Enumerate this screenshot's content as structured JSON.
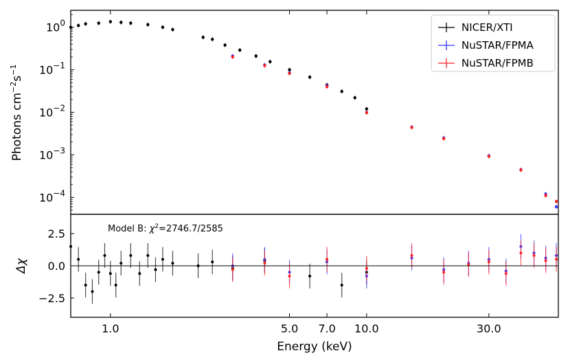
{
  "chart_data": [
    {
      "type": "scatter",
      "panel": "spectrum",
      "ylabel_main": "Photons cm",
      "ylabel_exp1": "−2",
      "ylabel_mid": "s",
      "ylabel_exp2": "−1",
      "xscale": "log",
      "yscale": "log",
      "xlim": [
        0.7,
        56
      ],
      "ylim": [
        4e-05,
        2.5
      ],
      "yticks": [
        {
          "value": 1,
          "base": "10",
          "exp": "0"
        },
        {
          "value": 0.1,
          "base": "10",
          "exp": "−1"
        },
        {
          "value": 0.01,
          "base": "10",
          "exp": "−2"
        },
        {
          "value": 0.001,
          "base": "10",
          "exp": "−3"
        },
        {
          "value": 0.0001,
          "base": "10",
          "exp": "−4"
        }
      ],
      "legend_position": "top-right",
      "series": [
        {
          "name": "NICER/XTI",
          "color": "#000000",
          "points": [
            [
              0.7,
              1.0
            ],
            [
              0.75,
              1.1
            ],
            [
              0.8,
              1.2
            ],
            [
              0.9,
              1.25
            ],
            [
              1.0,
              1.35
            ],
            [
              1.1,
              1.3
            ],
            [
              1.2,
              1.25
            ],
            [
              1.4,
              1.15
            ],
            [
              1.6,
              1.0
            ],
            [
              1.75,
              0.88
            ],
            [
              2.3,
              0.58
            ],
            [
              2.5,
              0.52
            ],
            [
              2.8,
              0.38
            ],
            [
              3.2,
              0.29
            ],
            [
              3.7,
              0.21
            ],
            [
              4.2,
              0.155
            ],
            [
              5.0,
              0.1
            ],
            [
              6.0,
              0.067
            ],
            [
              7.0,
              0.044
            ],
            [
              8.0,
              0.031
            ],
            [
              9.0,
              0.022
            ],
            [
              10.0,
              0.012
            ]
          ]
        },
        {
          "name": "NuSTAR/FPMA",
          "color": "#3333ff",
          "points": [
            [
              3,
              0.21
            ],
            [
              4,
              0.13
            ],
            [
              5,
              0.085
            ],
            [
              7,
              0.042
            ],
            [
              10,
              0.01
            ],
            [
              15,
              0.0045
            ],
            [
              20,
              0.0025
            ],
            [
              30,
              0.00095
            ],
            [
              40,
              0.00045
            ],
            [
              50,
              0.00012
            ],
            [
              55,
              6e-05
            ]
          ]
        },
        {
          "name": "NuSTAR/FPMB",
          "color": "#ff2222",
          "points": [
            [
              3,
              0.2
            ],
            [
              4,
              0.125
            ],
            [
              5,
              0.082
            ],
            [
              7,
              0.04
            ],
            [
              10,
              0.0098
            ],
            [
              15,
              0.0044
            ],
            [
              20,
              0.0024
            ],
            [
              30,
              0.00092
            ],
            [
              40,
              0.00044
            ],
            [
              50,
              0.00011
            ],
            [
              55,
              8e-05
            ]
          ]
        }
      ]
    },
    {
      "type": "scatter",
      "panel": "residuals",
      "ylabel": "Δχ",
      "xlabel": "Energy (keV)",
      "xscale": "log",
      "xlim": [
        0.7,
        56
      ],
      "ylim": [
        -4,
        4
      ],
      "xticks": [
        {
          "value": 1.0,
          "label": "1.0"
        },
        {
          "value": 5.0,
          "label": "5.0"
        },
        {
          "value": 7.0,
          "label": "7.0"
        },
        {
          "value": 10.0,
          "label": "10.0"
        },
        {
          "value": 30.0,
          "label": "30.0"
        }
      ],
      "yticks": [
        {
          "value": 2.5,
          "label": "2.5"
        },
        {
          "value": 0.0,
          "label": "0.0"
        },
        {
          "value": -2.5,
          "label": "−2.5"
        }
      ],
      "annotation_prefix": "Model B: ",
      "annotation_chi": "χ",
      "annotation_exp": "2",
      "annotation_value": "=2746.7/2585",
      "series": [
        {
          "name": "NICER/XTI",
          "color": "#000000",
          "points": [
            [
              0.7,
              1.5
            ],
            [
              0.75,
              0.5
            ],
            [
              0.8,
              -1.5
            ],
            [
              0.85,
              -2.0
            ],
            [
              0.9,
              -0.5
            ],
            [
              0.95,
              0.8
            ],
            [
              1.0,
              -0.6
            ],
            [
              1.05,
              -1.5
            ],
            [
              1.1,
              0.2
            ],
            [
              1.2,
              0.8
            ],
            [
              1.3,
              -0.6
            ],
            [
              1.4,
              0.8
            ],
            [
              1.5,
              -0.3
            ],
            [
              1.6,
              0.5
            ],
            [
              1.75,
              0.2
            ],
            [
              2.2,
              0.0
            ],
            [
              2.5,
              0.3
            ],
            [
              3.0,
              -0.2
            ],
            [
              4.0,
              0.4
            ],
            [
              6.0,
              -0.8
            ],
            [
              8.0,
              -1.5
            ],
            [
              10.0,
              -0.5
            ]
          ]
        },
        {
          "name": "NuSTAR/FPMA",
          "color": "#3333ff",
          "points": [
            [
              3.0,
              0.0
            ],
            [
              4.0,
              0.5
            ],
            [
              5.0,
              -0.5
            ],
            [
              7.0,
              0.3
            ],
            [
              10.0,
              -0.8
            ],
            [
              15.0,
              0.6
            ],
            [
              20.0,
              -0.3
            ],
            [
              25.0,
              0.2
            ],
            [
              30.0,
              0.5
            ],
            [
              35.0,
              -0.4
            ],
            [
              40.0,
              1.5
            ],
            [
              45.0,
              1.0
            ],
            [
              50.0,
              0.6
            ],
            [
              55.0,
              0.8
            ]
          ]
        },
        {
          "name": "NuSTAR/FPMB",
          "color": "#ff2222",
          "points": [
            [
              3.0,
              -0.3
            ],
            [
              4.0,
              0.2
            ],
            [
              5.0,
              -0.8
            ],
            [
              7.0,
              0.5
            ],
            [
              10.0,
              -0.2
            ],
            [
              15.0,
              0.8
            ],
            [
              20.0,
              -0.5
            ],
            [
              25.0,
              0.1
            ],
            [
              30.0,
              0.3
            ],
            [
              35.0,
              -0.6
            ],
            [
              40.0,
              1.0
            ],
            [
              45.0,
              0.8
            ],
            [
              50.0,
              0.4
            ],
            [
              55.0,
              0.5
            ]
          ]
        }
      ]
    }
  ]
}
